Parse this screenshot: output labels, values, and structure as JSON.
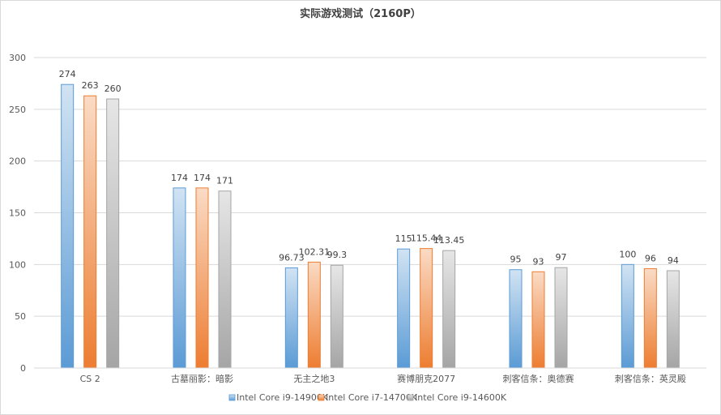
{
  "chart_data": {
    "type": "bar",
    "title": "实际游戏测试（2160P）",
    "xlabel": "",
    "ylabel": "",
    "ylim": [
      0,
      300
    ],
    "yticks": [
      0,
      50,
      100,
      150,
      200,
      250,
      300
    ],
    "grid": true,
    "legend_position": "bottom",
    "categories": [
      "CS 2",
      "古墓丽影：暗影",
      "无主之地3",
      "赛博朋克2077",
      "刺客信条：奥德赛",
      "刺客信条：英灵殿"
    ],
    "series": [
      {
        "name": "Intel Core i9-14900K",
        "color": "#5b9bd5",
        "values": [
          274,
          174,
          96.73,
          115,
          95,
          100
        ],
        "labels": [
          "274",
          "174",
          "96.73",
          "115",
          "95",
          "100"
        ]
      },
      {
        "name": "Intel Core i7-14700K",
        "color": "#ed7d31",
        "values": [
          263,
          174,
          102.31,
          115.44,
          93,
          96
        ],
        "labels": [
          "263",
          "174",
          "102.31",
          "115.44",
          "93",
          "96"
        ]
      },
      {
        "name": "Intel Core i9-14600K",
        "color": "#a5a5a5",
        "values": [
          260,
          171,
          99.3,
          113.45,
          97,
          94
        ],
        "labels": [
          "260",
          "171",
          "99.3",
          "113.45",
          "97",
          "94"
        ]
      }
    ]
  }
}
